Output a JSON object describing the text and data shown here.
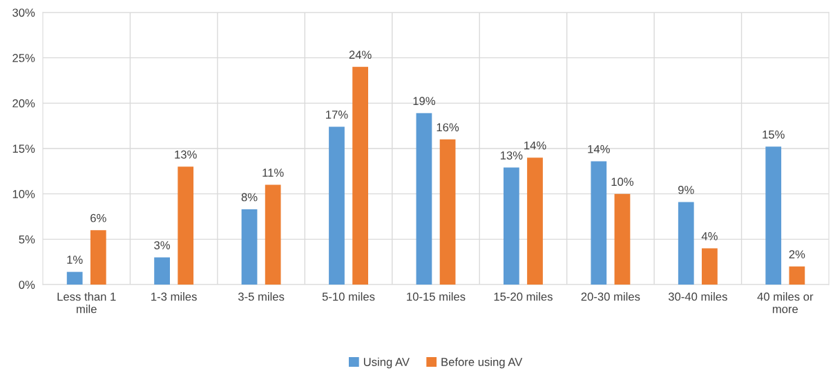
{
  "chart_data": {
    "type": "bar",
    "categories": [
      "Less than 1 mile",
      "1-3 miles",
      "3-5 miles",
      "5-10 miles",
      "10-15 miles",
      "15-20 miles",
      "20-30 miles",
      "30-40 miles",
      "40 miles or more"
    ],
    "series": [
      {
        "name": "Using AV",
        "color": "#5b9bd5",
        "values": [
          1.4,
          3.0,
          8.3,
          17.4,
          18.9,
          12.9,
          13.6,
          9.1,
          15.2
        ],
        "value_labels": [
          "1%",
          "3%",
          "8%",
          "17%",
          "19%",
          "13%",
          "14%",
          "9%",
          "15%"
        ]
      },
      {
        "name": "Before using AV",
        "color": "#ed7d31",
        "values": [
          6,
          13,
          11,
          24,
          16,
          14,
          10,
          4,
          2
        ],
        "value_labels": [
          "6%",
          "13%",
          "11%",
          "24%",
          "16%",
          "14%",
          "10%",
          "4%",
          "2%"
        ]
      }
    ],
    "ylim": [
      0,
      30
    ],
    "yticks": [
      {
        "value": 0,
        "label": "0%"
      },
      {
        "value": 5,
        "label": "5%"
      },
      {
        "value": 10,
        "label": "10%"
      },
      {
        "value": 15,
        "label": "15%"
      },
      {
        "value": 20,
        "label": "20%"
      },
      {
        "value": 25,
        "label": "25%"
      },
      {
        "value": 30,
        "label": "30%"
      }
    ],
    "grid": true,
    "legend": "bottom"
  }
}
